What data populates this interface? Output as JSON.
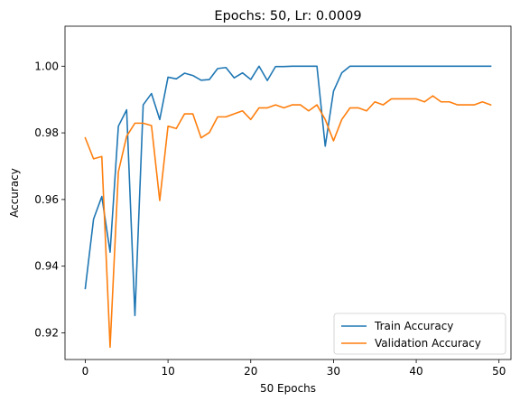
{
  "chart_data": {
    "type": "line",
    "title": "Epochs: 50, Lr: 0.0009",
    "xlabel": "50 Epochs",
    "ylabel": "Accuracy",
    "xlim": [
      -2.45,
      51.45
    ],
    "ylim": [
      0.912,
      1.012
    ],
    "xticks": [
      0,
      10,
      20,
      30,
      40,
      50
    ],
    "yticks": [
      0.92,
      0.94,
      0.96,
      0.98,
      1.0
    ],
    "ytick_labels": [
      "0.92",
      "0.94",
      "0.96",
      "0.98",
      "1.00"
    ],
    "legend_position": "lower-right",
    "grid": false,
    "x": [
      0,
      1,
      2,
      3,
      4,
      5,
      6,
      7,
      8,
      9,
      10,
      11,
      12,
      13,
      14,
      15,
      16,
      17,
      18,
      19,
      20,
      21,
      22,
      23,
      24,
      25,
      26,
      27,
      28,
      29,
      30,
      31,
      32,
      33,
      34,
      35,
      36,
      37,
      38,
      39,
      40,
      41,
      42,
      43,
      44,
      45,
      46,
      47,
      48,
      49
    ],
    "series": [
      {
        "name": "Train Accuracy",
        "color": "#1f77b4",
        "values": [
          0.9333,
          0.9541,
          0.9609,
          0.9442,
          0.982,
          0.9869,
          0.9252,
          0.9884,
          0.9918,
          0.984,
          0.9967,
          0.9962,
          0.9979,
          0.9972,
          0.9958,
          0.996,
          0.9993,
          0.9996,
          0.9965,
          0.998,
          0.996,
          1.0,
          0.9957,
          0.9999,
          0.9999,
          1.0,
          1.0,
          1.0,
          1.0,
          0.976,
          0.9925,
          0.998,
          1.0,
          1.0,
          1.0,
          1.0,
          1.0,
          1.0,
          1.0,
          1.0,
          1.0,
          1.0,
          1.0,
          1.0,
          1.0,
          1.0,
          1.0,
          1.0,
          1.0,
          1.0
        ]
      },
      {
        "name": "Validation Accuracy",
        "color": "#ff7f0e",
        "values": [
          0.9785,
          0.9722,
          0.9729,
          0.9157,
          0.9683,
          0.979,
          0.9829,
          0.9829,
          0.9822,
          0.9597,
          0.982,
          0.9813,
          0.9857,
          0.9857,
          0.9785,
          0.9801,
          0.9848,
          0.9848,
          0.9857,
          0.9866,
          0.984,
          0.9875,
          0.9875,
          0.9884,
          0.9875,
          0.9884,
          0.9884,
          0.9866,
          0.9884,
          0.984,
          0.9776,
          0.984,
          0.9875,
          0.9875,
          0.9866,
          0.9893,
          0.9884,
          0.9902,
          0.9902,
          0.9902,
          0.9902,
          0.9893,
          0.9911,
          0.9893,
          0.9893,
          0.9884,
          0.9884,
          0.9884,
          0.9893,
          0.9884
        ]
      }
    ]
  }
}
